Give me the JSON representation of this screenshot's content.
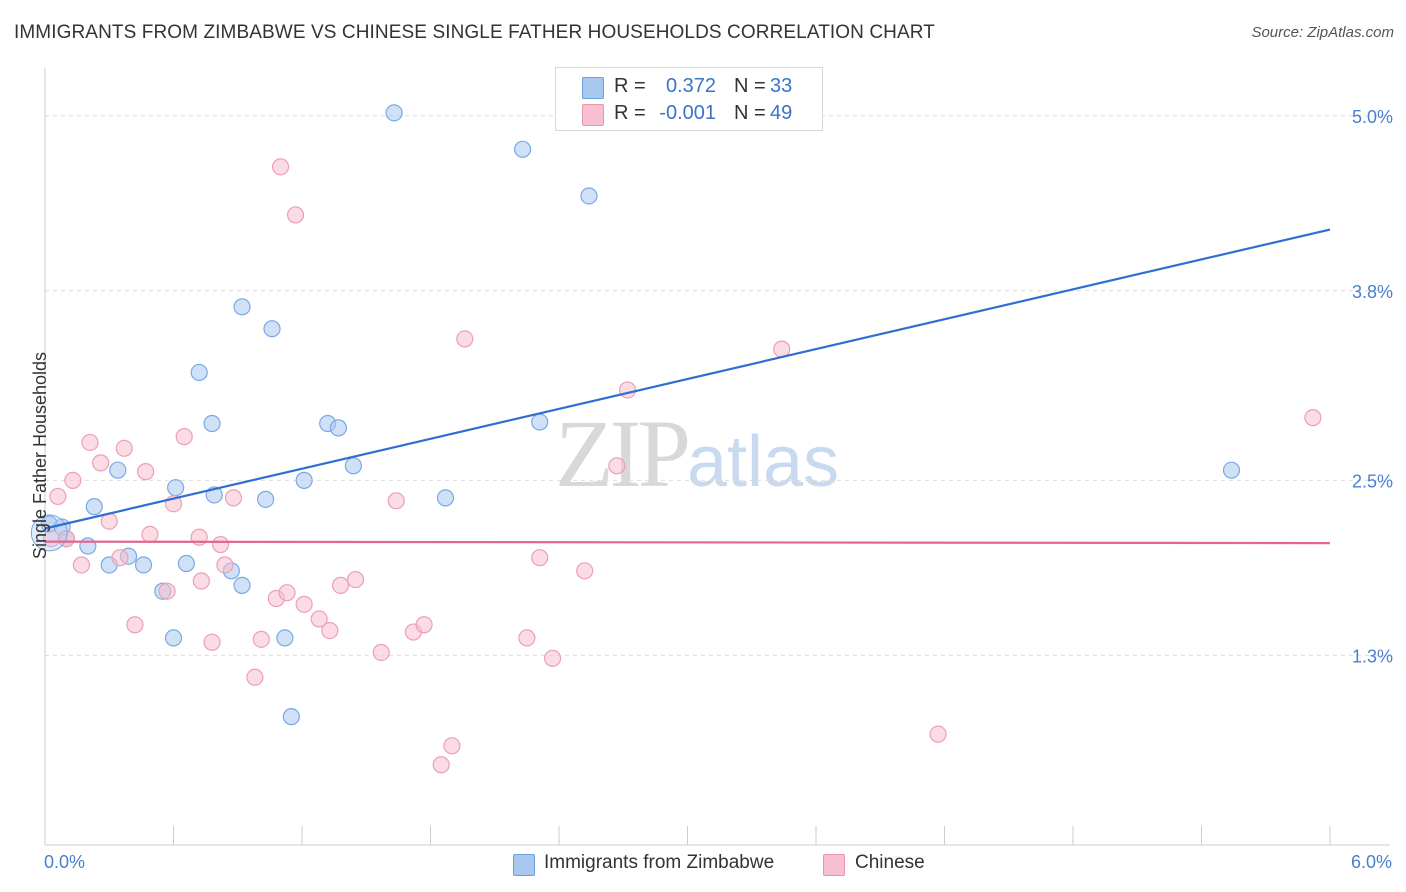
{
  "header": {
    "title": "IMMIGRANTS FROM ZIMBABWE VS CHINESE SINGLE FATHER HOUSEHOLDS CORRELATION CHART",
    "source": "Source: ZipAtlas.com"
  },
  "watermark": {
    "zip": "ZIP",
    "atlas": "atlas"
  },
  "legend": {
    "rows": [
      {
        "r_label": "R =",
        "r_value": "0.372",
        "n_label": "N =",
        "n_value": "33",
        "color": "#a9c8f0",
        "border": "#6a9fe0",
        "text_color": "#3b73c9"
      },
      {
        "r_label": "R =",
        "r_value": "-0.001",
        "n_label": "N =",
        "n_value": "49",
        "color": "#f7c0d0",
        "border": "#e995ae",
        "text_color": "#3b73c9"
      }
    ]
  },
  "colors": {
    "blue_fill": "#a9c8f0",
    "blue_stroke": "#7aa8e4",
    "blue_line": "#2f6fd0",
    "pink_fill": "#f7c0d0",
    "pink_stroke": "#ec9fb6",
    "pink_line": "#e0688c",
    "axis_label": "#4a7fd0",
    "grid": "#dddddd"
  },
  "chart_data": {
    "type": "scatter",
    "title": "IMMIGRANTS FROM ZIMBABWE VS CHINESE SINGLE FATHER HOUSEHOLDS CORRELATION CHART",
    "xlabel": "",
    "ylabel": "Single Father Households",
    "xlim": [
      0,
      6.0
    ],
    "ylim": [
      0.0,
      5.3
    ],
    "x_tick_labels": [
      "0.0%",
      "6.0%"
    ],
    "y_ticks": [
      1.3,
      2.5,
      3.8,
      5.0
    ],
    "y_tick_labels": [
      "1.3%",
      "2.5%",
      "3.8%",
      "5.0%"
    ],
    "grid": true,
    "legend_position": "top-center",
    "series": [
      {
        "name": "Immigrants from Zimbabwe",
        "color": "#a9c8f0",
        "points": [
          [
            0.02,
            2.2
          ],
          [
            0.08,
            2.18
          ],
          [
            0.1,
            2.1
          ],
          [
            0.2,
            2.05
          ],
          [
            0.23,
            2.32
          ],
          [
            0.3,
            1.92
          ],
          [
            0.34,
            2.57
          ],
          [
            0.39,
            1.98
          ],
          [
            0.46,
            1.92
          ],
          [
            0.55,
            1.74
          ],
          [
            0.6,
            1.42
          ],
          [
            0.61,
            2.45
          ],
          [
            0.66,
            1.93
          ],
          [
            0.72,
            3.24
          ],
          [
            0.78,
            2.89
          ],
          [
            0.79,
            2.4
          ],
          [
            0.87,
            1.88
          ],
          [
            0.92,
            1.78
          ],
          [
            0.92,
            3.69
          ],
          [
            1.03,
            2.37
          ],
          [
            1.06,
            3.54
          ],
          [
            1.12,
            1.42
          ],
          [
            1.15,
            0.88
          ],
          [
            1.21,
            2.5
          ],
          [
            1.32,
            2.89
          ],
          [
            1.37,
            2.86
          ],
          [
            1.44,
            2.6
          ],
          [
            1.63,
            5.02
          ],
          [
            1.87,
            2.38
          ],
          [
            2.23,
            4.77
          ],
          [
            2.31,
            2.9
          ],
          [
            2.54,
            4.45
          ],
          [
            5.54,
            2.57
          ]
        ]
      },
      {
        "name": "Chinese",
        "color": "#f7c0d0",
        "points": [
          [
            0.03,
            2.1
          ],
          [
            0.06,
            2.39
          ],
          [
            0.1,
            2.1
          ],
          [
            0.13,
            2.5
          ],
          [
            0.17,
            1.92
          ],
          [
            0.21,
            2.76
          ],
          [
            0.26,
            2.62
          ],
          [
            0.3,
            2.22
          ],
          [
            0.35,
            1.97
          ],
          [
            0.37,
            2.72
          ],
          [
            0.42,
            1.51
          ],
          [
            0.47,
            2.56
          ],
          [
            0.49,
            2.13
          ],
          [
            0.57,
            1.74
          ],
          [
            0.6,
            2.34
          ],
          [
            0.65,
            2.8
          ],
          [
            0.72,
            2.11
          ],
          [
            0.73,
            1.81
          ],
          [
            0.78,
            1.39
          ],
          [
            0.82,
            2.06
          ],
          [
            0.84,
            1.92
          ],
          [
            0.88,
            2.38
          ],
          [
            0.98,
            1.15
          ],
          [
            1.01,
            1.41
          ],
          [
            1.08,
            1.69
          ],
          [
            1.1,
            4.65
          ],
          [
            1.13,
            1.73
          ],
          [
            1.17,
            4.32
          ],
          [
            1.21,
            1.65
          ],
          [
            1.28,
            1.55
          ],
          [
            1.33,
            1.47
          ],
          [
            1.38,
            1.78
          ],
          [
            1.45,
            1.82
          ],
          [
            1.57,
            1.32
          ],
          [
            1.64,
            2.36
          ],
          [
            1.72,
            1.46
          ],
          [
            1.77,
            1.51
          ],
          [
            1.85,
            0.55
          ],
          [
            1.9,
            0.68
          ],
          [
            1.96,
            3.47
          ],
          [
            2.25,
            1.42
          ],
          [
            2.37,
            1.28
          ],
          [
            2.31,
            1.97
          ],
          [
            2.52,
            1.88
          ],
          [
            2.67,
            2.6
          ],
          [
            2.72,
            3.12
          ],
          [
            3.44,
            3.4
          ],
          [
            4.17,
            0.76
          ],
          [
            5.92,
            2.93
          ]
        ]
      }
    ],
    "trend_lines": [
      {
        "series": "Immigrants from Zimbabwe",
        "x": [
          0.0,
          6.0
        ],
        "y": [
          2.17,
          4.22
        ]
      },
      {
        "series": "Chinese",
        "x": [
          0.0,
          6.0
        ],
        "y": [
          2.08,
          2.07
        ]
      }
    ]
  },
  "axis": {
    "x_min_label": "0.0%",
    "x_max_label": "6.0%",
    "y_label": "Single Father Households"
  },
  "bottom_legend": {
    "items": [
      {
        "label": "Immigrants from Zimbabwe"
      },
      {
        "label": "Chinese"
      }
    ]
  }
}
